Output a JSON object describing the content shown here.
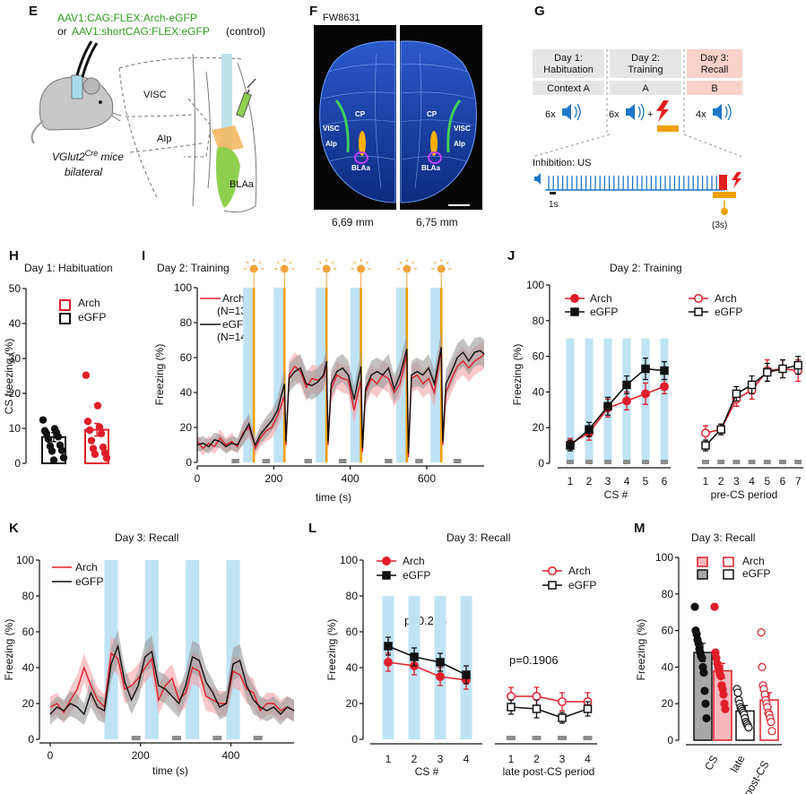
{
  "colors": {
    "arch": "#e01e2a",
    "arch_fill": "#f3a3a8",
    "egfp": "#111111",
    "egfp_fill": "#9a9a9a",
    "cs": "#bfe3f5",
    "light": "#f2a23a",
    "us": "#f0a000",
    "region": "#e6e6e6",
    "recall_hdr": "#f9d2c8",
    "speaker": "#1f77c9"
  },
  "panels": {
    "E": {
      "letter": "E",
      "line1": "AAV1:CAG:FLEX:Arch-eGFP",
      "line2_prefix": "or ",
      "line2": "AAV1:shortCAG:FLEX:eGFP",
      "line2_suffix": "(control)",
      "mouse": "VGlut2",
      "mouse_sup": "Cre",
      "mouse_suffix": " mice",
      "bilateral": "bilateral",
      "regions": [
        "VISC",
        "AIp",
        "BLAa"
      ]
    },
    "F": {
      "letter": "F",
      "title": "FW8631",
      "labels": [
        "CP",
        "VISC",
        "AIp",
        "BLAa",
        "CP",
        "VISC",
        "AIp",
        "BLAa"
      ],
      "left_mm": "6,69 mm",
      "right_mm": "6,75 mm"
    },
    "G": {
      "letter": "G",
      "days": [
        {
          "title": "Day 1:",
          "sub": "Habituation",
          "context": "Context A",
          "count": "6x"
        },
        {
          "title": "Day 2:",
          "sub": "Training",
          "context": "A",
          "count": "6x",
          "plus": "+"
        },
        {
          "title": "Day 3:",
          "sub": "Recall",
          "context": "B",
          "count": "4x"
        }
      ],
      "inhibition": "Inhibition: US",
      "scale": "1s",
      "light_dur": "(3s)"
    },
    "H": {
      "letter": "H",
      "title": "Day 1: Habituation",
      "ylabel": "CS freezing (%)",
      "legend": [
        "Arch",
        "eGFP"
      ]
    },
    "I": {
      "letter": "I",
      "title": "Day 2: Training",
      "ylabel": "Freezing (%)",
      "xlabel": "time (s)",
      "legend": [
        {
          "name": "Arch",
          "n": "(N=13)"
        },
        {
          "name": "eGFP",
          "n": "(N=14)"
        }
      ]
    },
    "J": {
      "letter": "J",
      "title": "Day 2: Training",
      "ylabel": "Freezing (%)",
      "xlabel_left": "CS #",
      "xlabel_right": "pre-CS period",
      "legend": [
        "Arch",
        "eGFP"
      ]
    },
    "K": {
      "letter": "K",
      "title": "Day 3: Recall",
      "ylabel": "Freezing (%)",
      "xlabel": "time (s)",
      "legend": [
        "Arch",
        "eGFP"
      ]
    },
    "L": {
      "letter": "L",
      "title": "Day 3: Recall",
      "ylabel": "Freezing (%)",
      "xlabel_left": "CS #",
      "xlabel_right": "late post-CS period",
      "p1": "p=0.288",
      "p2": "p=0.1906",
      "legend": [
        "Arch",
        "eGFP"
      ]
    },
    "M": {
      "letter": "M",
      "title": "Day 3: Recall",
      "ylabel": "Freezing (%)",
      "xlabels": [
        "CS",
        "late",
        "post-CS"
      ],
      "legend": [
        "Arch",
        "eGFP"
      ]
    }
  },
  "chart_data": [
    {
      "id": "H",
      "type": "bar",
      "title": "Day 1: Habituation",
      "ylabel": "CS freezing (%)",
      "ylim": [
        0,
        50
      ],
      "yticks": [
        0,
        10,
        20,
        30,
        40,
        50
      ],
      "series": [
        {
          "name": "eGFP",
          "value": 7.5,
          "err": 1.3,
          "points": [
            12.4,
            9.9,
            9.3,
            8.8,
            8.5,
            7.6,
            6.9,
            5.2,
            4.9,
            3.7,
            3.5,
            1.6,
            0.9
          ]
        },
        {
          "name": "Arch",
          "value": 9.6,
          "err": 1.8,
          "points": [
            25.2,
            16.5,
            12.0,
            10.4,
            9.5,
            8.5,
            6.5,
            4.6,
            4.2,
            3.0,
            2.6,
            1.5
          ]
        }
      ]
    },
    {
      "id": "I",
      "type": "line",
      "title": "Day 2: Training",
      "xlabel": "time (s)",
      "ylabel": "Freezing (%)",
      "xlim": [
        0,
        750
      ],
      "ylim": [
        0,
        100
      ],
      "xticks": [
        0,
        200,
        400,
        600
      ],
      "yticks": [
        0,
        20,
        40,
        60,
        80,
        100
      ],
      "cs_windows": [
        [
          120,
          150
        ],
        [
          200,
          230
        ],
        [
          310,
          340
        ],
        [
          400,
          430
        ],
        [
          520,
          550
        ],
        [
          610,
          640
        ]
      ],
      "us_times": [
        148,
        228,
        338,
        428,
        548,
        638
      ],
      "pre_cs": [
        [
          90,
          110
        ],
        [
          170,
          190
        ],
        [
          280,
          300
        ],
        [
          370,
          390
        ],
        [
          490,
          510
        ],
        [
          570,
          590
        ],
        [
          670,
          690
        ]
      ],
      "x": [
        0,
        15,
        30,
        45,
        60,
        75,
        90,
        105,
        120,
        135,
        148,
        152,
        165,
        180,
        195,
        210,
        228,
        232,
        240,
        255,
        270,
        285,
        300,
        315,
        330,
        338,
        342,
        350,
        365,
        380,
        395,
        410,
        428,
        432,
        440,
        455,
        470,
        485,
        500,
        515,
        530,
        548,
        552,
        560,
        575,
        590,
        605,
        620,
        638,
        642,
        650,
        665,
        680,
        695,
        710,
        725,
        740,
        750
      ],
      "series": [
        {
          "name": "Arch",
          "values": [
            12,
            8,
            11,
            9,
            14,
            10,
            12,
            9,
            17,
            20,
            12,
            8,
            14,
            18,
            20,
            27,
            38,
            10,
            50,
            55,
            52,
            43,
            48,
            47,
            49,
            56,
            10,
            42,
            50,
            48,
            47,
            30,
            47,
            6,
            40,
            48,
            45,
            50,
            48,
            40,
            45,
            62,
            3,
            48,
            50,
            45,
            48,
            40,
            65,
            10,
            40,
            48,
            55,
            58,
            54,
            58,
            60,
            62
          ],
          "err": [
            4,
            4,
            4,
            4,
            5,
            4,
            5,
            4,
            6,
            6,
            5,
            4,
            5,
            6,
            6,
            7,
            8,
            4,
            8,
            8,
            8,
            8,
            8,
            8,
            8,
            9,
            4,
            8,
            8,
            8,
            8,
            8,
            8,
            3,
            8,
            8,
            8,
            8,
            8,
            8,
            8,
            9,
            3,
            8,
            8,
            8,
            8,
            8,
            9,
            4,
            8,
            8,
            8,
            8,
            8,
            8,
            8,
            8
          ]
        },
        {
          "name": "eGFP",
          "values": [
            10,
            11,
            9,
            13,
            12,
            9,
            11,
            10,
            16,
            22,
            12,
            10,
            16,
            20,
            24,
            30,
            45,
            12,
            48,
            52,
            54,
            45,
            44,
            46,
            50,
            58,
            12,
            45,
            52,
            54,
            50,
            36,
            55,
            8,
            42,
            50,
            52,
            50,
            54,
            42,
            50,
            65,
            5,
            50,
            52,
            50,
            54,
            45,
            66,
            12,
            45,
            52,
            60,
            63,
            58,
            63,
            64,
            62
          ],
          "err": [
            4,
            4,
            4,
            4,
            4,
            4,
            4,
            4,
            6,
            6,
            5,
            4,
            5,
            6,
            6,
            7,
            8,
            4,
            8,
            8,
            8,
            8,
            8,
            8,
            8,
            9,
            4,
            8,
            8,
            8,
            8,
            8,
            8,
            3,
            8,
            8,
            8,
            8,
            8,
            8,
            8,
            9,
            3,
            8,
            8,
            8,
            8,
            8,
            9,
            4,
            8,
            8,
            8,
            8,
            8,
            8,
            8,
            8
          ]
        }
      ]
    },
    {
      "id": "J",
      "type": "line",
      "title": "Day 2: Training",
      "ylabel": "Freezing (%)",
      "ylim": [
        0,
        100
      ],
      "yticks": [
        0,
        20,
        40,
        60,
        80,
        100
      ],
      "left": {
        "xlabel": "CS #",
        "categories": [
          "1",
          "2",
          "3",
          "4",
          "5",
          "6"
        ],
        "series": [
          {
            "name": "Arch",
            "values": [
              11,
              17,
              31,
              35,
              39,
              43
            ],
            "err": [
              3,
              4,
              5,
              5,
              6,
              4
            ]
          },
          {
            "name": "eGFP",
            "values": [
              10,
              19,
              32,
              44,
              53,
              52
            ],
            "err": [
              3,
              4,
              5,
              5,
              6,
              5
            ]
          }
        ]
      },
      "right": {
        "xlabel": "pre-CS period",
        "categories": [
          "1",
          "2",
          "3",
          "4",
          "5",
          "6",
          "7"
        ],
        "series": [
          {
            "name": "Arch",
            "values": [
              17,
              19,
              36,
              41,
              52,
              53,
              52
            ],
            "err": [
              4,
              3,
              4,
              5,
              6,
              5,
              6
            ]
          },
          {
            "name": "eGFP",
            "values": [
              10,
              19,
              39,
              44,
              51,
              53,
              55
            ],
            "err": [
              3,
              3,
              4,
              5,
              5,
              5,
              5
            ]
          }
        ]
      }
    },
    {
      "id": "K",
      "type": "line",
      "title": "Day 3: Recall",
      "xlabel": "time (s)",
      "ylabel": "Freezing (%)",
      "xlim": [
        0,
        540
      ],
      "ylim": [
        0,
        100
      ],
      "xticks": [
        0,
        200,
        400
      ],
      "yticks": [
        0,
        20,
        40,
        60,
        80,
        100
      ],
      "cs_windows": [
        [
          120,
          150
        ],
        [
          210,
          240
        ],
        [
          300,
          330
        ],
        [
          390,
          420
        ]
      ],
      "pre_cs": [
        [
          180,
          200
        ],
        [
          270,
          290
        ],
        [
          360,
          380
        ],
        [
          450,
          470
        ]
      ],
      "x": [
        0,
        15,
        30,
        45,
        60,
        75,
        90,
        105,
        120,
        135,
        150,
        165,
        180,
        195,
        210,
        225,
        240,
        255,
        270,
        285,
        300,
        315,
        330,
        345,
        360,
        375,
        390,
        405,
        420,
        435,
        450,
        465,
        480,
        495,
        510,
        525,
        540
      ],
      "series": [
        {
          "name": "Arch",
          "values": [
            18,
            20,
            15,
            22,
            28,
            40,
            30,
            22,
            18,
            48,
            45,
            28,
            30,
            34,
            40,
            45,
            22,
            30,
            34,
            22,
            26,
            40,
            38,
            24,
            22,
            20,
            20,
            38,
            36,
            28,
            26,
            16,
            20,
            20,
            16,
            18,
            16
          ],
          "err": [
            6,
            6,
            6,
            7,
            8,
            8,
            8,
            7,
            7,
            9,
            9,
            8,
            8,
            8,
            8,
            9,
            8,
            8,
            8,
            8,
            8,
            9,
            9,
            8,
            7,
            7,
            7,
            9,
            9,
            8,
            8,
            6,
            6,
            6,
            6,
            6,
            6
          ]
        },
        {
          "name": "eGFP",
          "values": [
            14,
            18,
            16,
            20,
            18,
            14,
            26,
            18,
            16,
            42,
            52,
            32,
            22,
            30,
            46,
            49,
            30,
            28,
            24,
            20,
            30,
            46,
            44,
            32,
            26,
            18,
            20,
            42,
            44,
            30,
            22,
            18,
            16,
            18,
            14,
            18,
            16
          ],
          "err": [
            6,
            6,
            6,
            7,
            7,
            6,
            8,
            7,
            7,
            9,
            9,
            8,
            8,
            8,
            8,
            9,
            8,
            8,
            8,
            8,
            8,
            9,
            9,
            8,
            7,
            7,
            7,
            9,
            9,
            8,
            8,
            6,
            6,
            6,
            6,
            6,
            6
          ]
        }
      ]
    },
    {
      "id": "L",
      "type": "line",
      "title": "Day 3: Recall",
      "ylabel": "Freezing (%)",
      "ylim": [
        0,
        100
      ],
      "yticks": [
        0,
        20,
        40,
        60,
        80,
        100
      ],
      "left": {
        "xlabel": "CS #",
        "categories": [
          "1",
          "2",
          "3",
          "4"
        ],
        "series": [
          {
            "name": "Arch",
            "values": [
              43,
              41,
              35,
              33
            ],
            "err": [
              5,
              5,
              5,
              5
            ]
          },
          {
            "name": "eGFP",
            "values": [
              52,
              46,
              43,
              36
            ],
            "err": [
              5,
              5,
              5,
              5
            ]
          }
        ]
      },
      "right": {
        "xlabel": "late post-CS period",
        "categories": [
          "1",
          "2",
          "3",
          "4"
        ],
        "series": [
          {
            "name": "Arch",
            "values": [
              24,
              24,
              21,
              21
            ],
            "err": [
              5,
              5,
              5,
              5
            ]
          },
          {
            "name": "eGFP",
            "values": [
              18,
              17,
              12,
              17
            ],
            "err": [
              4,
              5,
              3,
              4
            ]
          }
        ]
      },
      "annotations": [
        "p=0.288",
        "p=0.1906"
      ]
    },
    {
      "id": "M",
      "type": "bar",
      "title": "Day 3: Recall",
      "ylabel": "Freezing (%)",
      "ylim": [
        0,
        100
      ],
      "yticks": [
        0,
        20,
        40,
        60,
        80,
        100
      ],
      "categories": [
        "CS",
        "late post-CS"
      ],
      "series": [
        {
          "name": "eGFP",
          "values": [
            48,
            16
          ],
          "err": [
            5,
            3
          ],
          "points": [
            [
              73,
              60,
              58,
              55,
              53,
              50,
              48,
              46,
              45,
              40,
              37,
              27,
              20,
              12
            ],
            [
              28,
              26,
              22,
              20,
              18,
              17,
              16,
              15,
              14,
              12,
              10,
              9,
              8,
              7
            ]
          ]
        },
        {
          "name": "Arch",
          "values": [
            38,
            22
          ],
          "err": [
            4,
            4
          ],
          "points": [
            [
              73,
              48,
              45,
              42,
              40,
              38,
              36,
              35,
              30,
              28,
              25,
              20,
              17
            ],
            [
              59,
              40,
              30,
              28,
              25,
              22,
              20,
              18,
              15,
              14,
              12,
              10,
              5
            ]
          ]
        }
      ]
    }
  ]
}
